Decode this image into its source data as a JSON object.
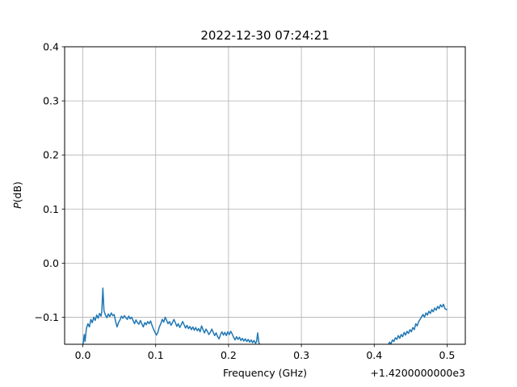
{
  "chart_data": {
    "type": "line",
    "title": "2022-12-30 07:24:21",
    "xlabel": "Frequency (GHz)",
    "ylabel_italic": "P",
    "ylabel_rest": "(dB)",
    "x_offset_label": "+1.4200000000e3",
    "xlim": [
      -0.025,
      0.525
    ],
    "ylim": [
      -0.15,
      0.4
    ],
    "xticks": [
      {
        "value": 0.0,
        "label": "0.0"
      },
      {
        "value": 0.1,
        "label": "0.1"
      },
      {
        "value": 0.2,
        "label": "0.2"
      },
      {
        "value": 0.3,
        "label": "0.3"
      },
      {
        "value": 0.4,
        "label": "0.4"
      },
      {
        "value": 0.5,
        "label": "0.5"
      }
    ],
    "yticks": [
      {
        "value": -0.1,
        "label": "−0.1"
      },
      {
        "value": 0.0,
        "label": "0.0"
      },
      {
        "value": 0.1,
        "label": "0.1"
      },
      {
        "value": 0.2,
        "label": "0.2"
      },
      {
        "value": 0.3,
        "label": "0.3"
      },
      {
        "value": 0.4,
        "label": "0.4"
      }
    ],
    "grid": true,
    "series": [
      {
        "color": "#1f77b4",
        "segments": [
          [
            [
              0.0,
              -0.152
            ],
            [
              0.002,
              -0.132
            ],
            [
              0.003,
              -0.145
            ],
            [
              0.005,
              -0.12
            ],
            [
              0.007,
              -0.112
            ],
            [
              0.009,
              -0.118
            ],
            [
              0.011,
              -0.104
            ],
            [
              0.013,
              -0.11
            ],
            [
              0.015,
              -0.1
            ],
            [
              0.017,
              -0.106
            ],
            [
              0.019,
              -0.096
            ],
            [
              0.021,
              -0.102
            ],
            [
              0.023,
              -0.093
            ],
            [
              0.025,
              -0.098
            ],
            [
              0.026,
              -0.09
            ],
            [
              0.0275,
              -0.046
            ],
            [
              0.029,
              -0.088
            ],
            [
              0.031,
              -0.096
            ],
            [
              0.033,
              -0.101
            ],
            [
              0.035,
              -0.094
            ],
            [
              0.037,
              -0.099
            ],
            [
              0.039,
              -0.092
            ],
            [
              0.041,
              -0.097
            ],
            [
              0.043,
              -0.095
            ],
            [
              0.045,
              -0.108
            ],
            [
              0.047,
              -0.118
            ],
            [
              0.049,
              -0.11
            ],
            [
              0.051,
              -0.105
            ],
            [
              0.053,
              -0.098
            ],
            [
              0.055,
              -0.102
            ],
            [
              0.057,
              -0.097
            ],
            [
              0.059,
              -0.101
            ],
            [
              0.061,
              -0.104
            ],
            [
              0.063,
              -0.098
            ],
            [
              0.065,
              -0.103
            ],
            [
              0.067,
              -0.1
            ],
            [
              0.069,
              -0.106
            ],
            [
              0.071,
              -0.112
            ],
            [
              0.073,
              -0.105
            ],
            [
              0.075,
              -0.11
            ],
            [
              0.077,
              -0.113
            ],
            [
              0.079,
              -0.106
            ],
            [
              0.081,
              -0.112
            ],
            [
              0.083,
              -0.118
            ],
            [
              0.085,
              -0.11
            ],
            [
              0.087,
              -0.114
            ],
            [
              0.089,
              -0.108
            ],
            [
              0.091,
              -0.112
            ],
            [
              0.093,
              -0.107
            ],
            [
              0.095,
              -0.115
            ],
            [
              0.097,
              -0.122
            ],
            [
              0.099,
              -0.128
            ],
            [
              0.101,
              -0.133
            ],
            [
              0.103,
              -0.128
            ],
            [
              0.105,
              -0.118
            ],
            [
              0.107,
              -0.112
            ],
            [
              0.109,
              -0.104
            ],
            [
              0.111,
              -0.109
            ],
            [
              0.113,
              -0.1
            ],
            [
              0.115,
              -0.106
            ],
            [
              0.117,
              -0.112
            ],
            [
              0.119,
              -0.108
            ],
            [
              0.121,
              -0.115
            ],
            [
              0.123,
              -0.11
            ],
            [
              0.125,
              -0.104
            ],
            [
              0.127,
              -0.11
            ],
            [
              0.129,
              -0.117
            ],
            [
              0.131,
              -0.112
            ],
            [
              0.133,
              -0.119
            ],
            [
              0.135,
              -0.114
            ],
            [
              0.137,
              -0.108
            ],
            [
              0.139,
              -0.114
            ],
            [
              0.141,
              -0.12
            ],
            [
              0.143,
              -0.115
            ],
            [
              0.145,
              -0.121
            ],
            [
              0.147,
              -0.117
            ],
            [
              0.149,
              -0.123
            ],
            [
              0.151,
              -0.118
            ],
            [
              0.153,
              -0.124
            ],
            [
              0.155,
              -0.119
            ],
            [
              0.157,
              -0.125
            ],
            [
              0.159,
              -0.121
            ],
            [
              0.161,
              -0.127
            ],
            [
              0.163,
              -0.116
            ],
            [
              0.165,
              -0.123
            ],
            [
              0.167,
              -0.129
            ],
            [
              0.169,
              -0.122
            ],
            [
              0.171,
              -0.126
            ],
            [
              0.173,
              -0.132
            ],
            [
              0.175,
              -0.128
            ],
            [
              0.177,
              -0.122
            ],
            [
              0.179,
              -0.128
            ],
            [
              0.181,
              -0.134
            ],
            [
              0.183,
              -0.129
            ],
            [
              0.185,
              -0.136
            ],
            [
              0.187,
              -0.14
            ],
            [
              0.189,
              -0.132
            ],
            [
              0.191,
              -0.127
            ],
            [
              0.193,
              -0.133
            ],
            [
              0.195,
              -0.128
            ],
            [
              0.197,
              -0.134
            ],
            [
              0.199,
              -0.127
            ],
            [
              0.201,
              -0.132
            ],
            [
              0.203,
              -0.126
            ],
            [
              0.205,
              -0.131
            ],
            [
              0.207,
              -0.137
            ],
            [
              0.209,
              -0.142
            ],
            [
              0.211,
              -0.136
            ],
            [
              0.213,
              -0.141
            ],
            [
              0.215,
              -0.137
            ],
            [
              0.217,
              -0.143
            ],
            [
              0.219,
              -0.139
            ],
            [
              0.221,
              -0.144
            ],
            [
              0.223,
              -0.14
            ],
            [
              0.225,
              -0.145
            ],
            [
              0.227,
              -0.141
            ],
            [
              0.229,
              -0.146
            ],
            [
              0.231,
              -0.142
            ],
            [
              0.233,
              -0.147
            ],
            [
              0.235,
              -0.143
            ],
            [
              0.237,
              -0.148
            ],
            [
              0.2385,
              -0.145
            ],
            [
              0.24,
              -0.129
            ],
            [
              0.2415,
              -0.146
            ],
            [
              0.243,
              -0.152
            ]
          ],
          [
            [
              0.419,
              -0.152
            ],
            [
              0.421,
              -0.146
            ],
            [
              0.423,
              -0.149
            ],
            [
              0.425,
              -0.142
            ],
            [
              0.427,
              -0.145
            ],
            [
              0.429,
              -0.138
            ],
            [
              0.431,
              -0.141
            ],
            [
              0.433,
              -0.134
            ],
            [
              0.435,
              -0.139
            ],
            [
              0.437,
              -0.132
            ],
            [
              0.439,
              -0.136
            ],
            [
              0.441,
              -0.128
            ],
            [
              0.443,
              -0.133
            ],
            [
              0.445,
              -0.126
            ],
            [
              0.447,
              -0.13
            ],
            [
              0.449,
              -0.123
            ],
            [
              0.451,
              -0.127
            ],
            [
              0.453,
              -0.119
            ],
            [
              0.455,
              -0.123
            ],
            [
              0.457,
              -0.112
            ],
            [
              0.459,
              -0.116
            ],
            [
              0.461,
              -0.108
            ],
            [
              0.463,
              -0.104
            ],
            [
              0.465,
              -0.099
            ],
            [
              0.467,
              -0.095
            ],
            [
              0.469,
              -0.1
            ],
            [
              0.471,
              -0.092
            ],
            [
              0.473,
              -0.096
            ],
            [
              0.475,
              -0.089
            ],
            [
              0.477,
              -0.093
            ],
            [
              0.479,
              -0.086
            ],
            [
              0.481,
              -0.09
            ],
            [
              0.483,
              -0.083
            ],
            [
              0.485,
              -0.087
            ],
            [
              0.487,
              -0.08
            ],
            [
              0.489,
              -0.084
            ],
            [
              0.491,
              -0.077
            ],
            [
              0.493,
              -0.081
            ],
            [
              0.495,
              -0.076
            ],
            [
              0.497,
              -0.084
            ],
            [
              0.499,
              -0.086
            ],
            [
              0.5,
              -0.085
            ]
          ]
        ]
      }
    ]
  }
}
